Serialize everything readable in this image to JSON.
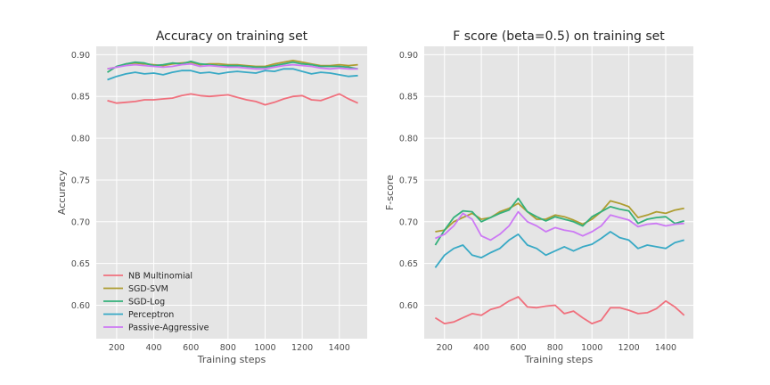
{
  "chart_data": [
    {
      "type": "line",
      "title": "Accuracy on training set",
      "xlabel": "Training steps",
      "ylabel": "Accuracy",
      "xlim": [
        90,
        1550
      ],
      "ylim": [
        0.56,
        0.91
      ],
      "xticks": [
        "200",
        "400",
        "600",
        "800",
        "1000",
        "1200",
        "1400"
      ],
      "xtick_values": [
        200,
        400,
        600,
        800,
        1000,
        1200,
        1400
      ],
      "yticks": [
        "0.60",
        "0.65",
        "0.70",
        "0.75",
        "0.80",
        "0.85",
        "0.90"
      ],
      "ytick_values": [
        0.6,
        0.65,
        0.7,
        0.75,
        0.8,
        0.85,
        0.9
      ],
      "grid": true,
      "legend_position": "lower-left",
      "x": [
        150,
        200,
        250,
        300,
        350,
        400,
        450,
        500,
        550,
        600,
        650,
        700,
        750,
        800,
        850,
        900,
        950,
        1000,
        1050,
        1100,
        1150,
        1200,
        1250,
        1300,
        1350,
        1400,
        1450,
        1500
      ],
      "series": [
        {
          "name": "NB Multinomial",
          "color": "#f0707d",
          "values": [
            0.845,
            0.842,
            0.843,
            0.844,
            0.846,
            0.846,
            0.847,
            0.848,
            0.851,
            0.853,
            0.851,
            0.85,
            0.851,
            0.852,
            0.849,
            0.846,
            0.844,
            0.84,
            0.843,
            0.847,
            0.85,
            0.851,
            0.846,
            0.845,
            0.849,
            0.853,
            0.847,
            0.842
          ]
        },
        {
          "name": "SGD-SVM",
          "color": "#ae9d31",
          "values": [
            0.883,
            0.885,
            0.889,
            0.89,
            0.889,
            0.888,
            0.887,
            0.889,
            0.89,
            0.891,
            0.888,
            0.889,
            0.889,
            0.888,
            0.888,
            0.887,
            0.886,
            0.886,
            0.889,
            0.891,
            0.893,
            0.891,
            0.889,
            0.887,
            0.887,
            0.888,
            0.887,
            0.888
          ]
        },
        {
          "name": "SGD-Log",
          "color": "#33b07b",
          "values": [
            0.879,
            0.886,
            0.889,
            0.891,
            0.89,
            0.887,
            0.888,
            0.89,
            0.889,
            0.892,
            0.889,
            0.888,
            0.887,
            0.887,
            0.887,
            0.886,
            0.885,
            0.885,
            0.887,
            0.889,
            0.891,
            0.889,
            0.888,
            0.886,
            0.886,
            0.886,
            0.885,
            0.883
          ]
        },
        {
          "name": "Perceptron",
          "color": "#38a9c5",
          "values": [
            0.87,
            0.874,
            0.877,
            0.879,
            0.877,
            0.878,
            0.876,
            0.879,
            0.881,
            0.881,
            0.878,
            0.879,
            0.877,
            0.879,
            0.88,
            0.879,
            0.878,
            0.881,
            0.88,
            0.883,
            0.883,
            0.88,
            0.877,
            0.879,
            0.878,
            0.876,
            0.874,
            0.875
          ]
        },
        {
          "name": "Passive-Aggressive",
          "color": "#cc79f4",
          "values": [
            0.883,
            0.885,
            0.887,
            0.888,
            0.887,
            0.886,
            0.885,
            0.886,
            0.888,
            0.889,
            0.886,
            0.887,
            0.886,
            0.885,
            0.885,
            0.884,
            0.883,
            0.883,
            0.885,
            0.887,
            0.888,
            0.887,
            0.886,
            0.884,
            0.883,
            0.884,
            0.883,
            0.883
          ]
        }
      ]
    },
    {
      "type": "line",
      "title": "F score (beta=0.5) on training set",
      "xlabel": "Training steps",
      "ylabel": "F-score",
      "xlim": [
        90,
        1550
      ],
      "ylim": [
        0.56,
        0.91
      ],
      "xticks": [
        "200",
        "400",
        "600",
        "800",
        "1000",
        "1200",
        "1400"
      ],
      "xtick_values": [
        200,
        400,
        600,
        800,
        1000,
        1200,
        1400
      ],
      "yticks": [
        "0.60",
        "0.65",
        "0.70",
        "0.75",
        "0.80",
        "0.85",
        "0.90"
      ],
      "ytick_values": [
        0.6,
        0.65,
        0.7,
        0.75,
        0.8,
        0.85,
        0.9
      ],
      "grid": true,
      "x": [
        150,
        200,
        250,
        300,
        350,
        400,
        450,
        500,
        550,
        600,
        650,
        700,
        750,
        800,
        850,
        900,
        950,
        1000,
        1050,
        1100,
        1150,
        1200,
        1250,
        1300,
        1350,
        1400,
        1450,
        1500
      ],
      "series": [
        {
          "name": "NB Multinomial",
          "color": "#f0707d",
          "values": [
            0.585,
            0.578,
            0.58,
            0.585,
            0.59,
            0.588,
            0.595,
            0.598,
            0.605,
            0.61,
            0.598,
            0.597,
            0.599,
            0.6,
            0.59,
            0.593,
            0.585,
            0.578,
            0.582,
            0.597,
            0.597,
            0.594,
            0.59,
            0.591,
            0.596,
            0.605,
            0.598,
            0.588
          ]
        },
        {
          "name": "SGD-SVM",
          "color": "#ae9d31",
          "values": [
            0.688,
            0.69,
            0.7,
            0.705,
            0.71,
            0.703,
            0.705,
            0.712,
            0.716,
            0.722,
            0.712,
            0.703,
            0.703,
            0.708,
            0.706,
            0.702,
            0.697,
            0.703,
            0.712,
            0.725,
            0.722,
            0.718,
            0.705,
            0.708,
            0.712,
            0.71,
            0.714,
            0.716
          ]
        },
        {
          "name": "SGD-Log",
          "color": "#33b07b",
          "values": [
            0.672,
            0.69,
            0.705,
            0.713,
            0.712,
            0.7,
            0.705,
            0.71,
            0.714,
            0.728,
            0.712,
            0.706,
            0.701,
            0.706,
            0.703,
            0.7,
            0.695,
            0.706,
            0.712,
            0.718,
            0.715,
            0.713,
            0.698,
            0.703,
            0.705,
            0.706,
            0.698,
            0.701
          ]
        },
        {
          "name": "Perceptron",
          "color": "#38a9c5",
          "values": [
            0.645,
            0.66,
            0.668,
            0.672,
            0.66,
            0.657,
            0.663,
            0.668,
            0.678,
            0.685,
            0.672,
            0.668,
            0.66,
            0.665,
            0.67,
            0.665,
            0.67,
            0.673,
            0.68,
            0.688,
            0.681,
            0.678,
            0.668,
            0.672,
            0.67,
            0.668,
            0.675,
            0.678
          ]
        },
        {
          "name": "Passive-Aggressive",
          "color": "#cc79f4",
          "values": [
            0.68,
            0.685,
            0.695,
            0.71,
            0.703,
            0.683,
            0.678,
            0.685,
            0.695,
            0.712,
            0.7,
            0.695,
            0.688,
            0.693,
            0.69,
            0.688,
            0.683,
            0.688,
            0.695,
            0.708,
            0.705,
            0.702,
            0.694,
            0.697,
            0.698,
            0.695,
            0.697,
            0.698
          ]
        }
      ]
    }
  ]
}
